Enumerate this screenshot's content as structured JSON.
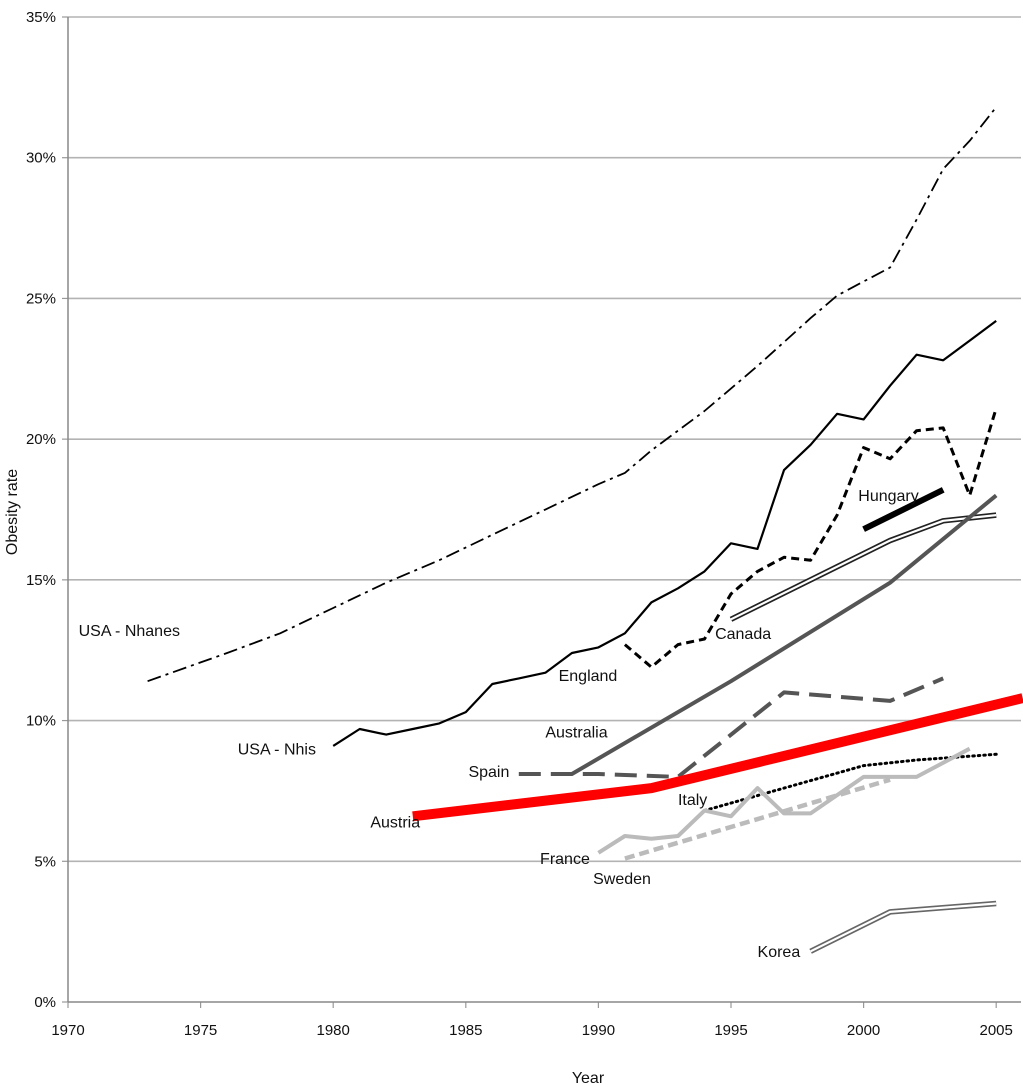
{
  "chart_data": {
    "type": "line",
    "title": "",
    "xlabel": "Year",
    "ylabel": "Obesity rate",
    "xlim": [
      1970,
      2006
    ],
    "ylim": [
      0,
      35
    ],
    "x_ticks": [
      "1970",
      "1975",
      "1980",
      "1985",
      "1990",
      "1995",
      "2000",
      "2005"
    ],
    "y_ticks": [
      "0%",
      "5%",
      "10%",
      "15%",
      "20%",
      "25%",
      "30%",
      "35%"
    ],
    "grid": "horizontal",
    "series": [
      {
        "name": "USA - Nhanes",
        "color": "#000000",
        "style": "dash-dot",
        "x": [
          1973,
          1976,
          1978,
          1980,
          1982,
          1984,
          1986,
          1988,
          1990,
          1991,
          1992,
          1994,
          1996,
          1998,
          1999,
          2000,
          2001,
          2002,
          2003,
          2004,
          2005
        ],
        "y": [
          11.4,
          12.4,
          13.1,
          14.0,
          14.9,
          15.7,
          16.6,
          17.5,
          18.4,
          18.8,
          19.6,
          21.0,
          22.6,
          24.3,
          25.1,
          25.6,
          26.1,
          27.8,
          29.6,
          30.6,
          31.8
        ]
      },
      {
        "name": "USA - Nhis",
        "color": "#000000",
        "style": "solid",
        "x": [
          1980,
          1981,
          1982,
          1983,
          1984,
          1985,
          1986,
          1987,
          1988,
          1989,
          1990,
          1991,
          1992,
          1993,
          1994,
          1995,
          1996,
          1997,
          1998,
          1999,
          2000,
          2001,
          2002,
          2003,
          2004,
          2005
        ],
        "y": [
          9.1,
          9.7,
          9.5,
          9.7,
          9.9,
          10.3,
          11.3,
          11.5,
          11.7,
          12.4,
          12.6,
          13.1,
          14.2,
          14.7,
          15.3,
          16.3,
          16.1,
          18.9,
          19.8,
          20.9,
          20.7,
          21.9,
          23.0,
          22.8,
          23.5,
          24.2
        ]
      },
      {
        "name": "England",
        "color": "#000000",
        "style": "dotted-dash",
        "x": [
          1991,
          1992,
          1993,
          1994,
          1995,
          1996,
          1997,
          1998,
          1999,
          2000,
          2001,
          2002,
          2003,
          2004,
          2005
        ],
        "y": [
          12.7,
          11.9,
          12.7,
          12.9,
          14.5,
          15.3,
          15.8,
          15.7,
          17.3,
          19.7,
          19.3,
          20.3,
          20.4,
          18.0,
          21.1
        ]
      },
      {
        "name": "Canada",
        "color": "#222222",
        "style": "double",
        "x": [
          1995,
          2001,
          2003,
          2005
        ],
        "y": [
          13.6,
          16.4,
          17.1,
          17.3
        ]
      },
      {
        "name": "Hungary",
        "color": "#000000",
        "style": "thick",
        "x": [
          2000,
          2003
        ],
        "y": [
          16.8,
          18.2
        ]
      },
      {
        "name": "Australia",
        "color": "#555555",
        "style": "solid-medium",
        "x": [
          1989,
          1995,
          2001,
          2005
        ],
        "y": [
          8.1,
          11.4,
          14.9,
          18.0
        ]
      },
      {
        "name": "Spain",
        "color": "#555555",
        "style": "long-dash",
        "x": [
          1987,
          1990,
          1993,
          1997,
          2001,
          2003
        ],
        "y": [
          8.1,
          8.1,
          8.0,
          11.0,
          10.7,
          11.5
        ]
      },
      {
        "name": "Austria",
        "color": "#ff0000",
        "style": "thick",
        "x": [
          1983,
          1992,
          2006
        ],
        "y": [
          6.6,
          7.6,
          10.8
        ]
      },
      {
        "name": "Italy",
        "color": "#000000",
        "style": "dotted",
        "x": [
          1994,
          1997,
          2000,
          2002,
          2005
        ],
        "y": [
          6.8,
          7.6,
          8.4,
          8.6,
          8.8
        ]
      },
      {
        "name": "France",
        "color": "#bbbbbb",
        "style": "solid-medium",
        "x": [
          1990,
          1991,
          1992,
          1993,
          1994,
          1995,
          1996,
          1997,
          1998,
          2000,
          2002,
          2004
        ],
        "y": [
          5.3,
          5.9,
          5.8,
          5.9,
          6.8,
          6.6,
          7.6,
          6.7,
          6.7,
          8.0,
          8.0,
          9.0
        ]
      },
      {
        "name": "Sweden",
        "color": "#bbbbbb",
        "style": "short-dash",
        "x": [
          1991,
          2001
        ],
        "y": [
          5.1,
          7.9
        ]
      },
      {
        "name": "Korea",
        "color": "#666666",
        "style": "double",
        "x": [
          1998,
          2001,
          2005
        ],
        "y": [
          1.8,
          3.2,
          3.5
        ]
      }
    ],
    "labels": [
      {
        "text": "USA - Nhanes",
        "x": 1970.4,
        "y": 13.0
      },
      {
        "text": "USA - Nhis",
        "x": 1976.4,
        "y": 8.8
      },
      {
        "text": "England",
        "x": 1988.5,
        "y": 11.4
      },
      {
        "text": "Canada",
        "x": 1994.4,
        "y": 12.9
      },
      {
        "text": "Hungary",
        "x": 1999.8,
        "y": 17.8
      },
      {
        "text": "Australia",
        "x": 1988.0,
        "y": 9.4
      },
      {
        "text": "Spain",
        "x": 1985.1,
        "y": 8.0
      },
      {
        "text": "Austria",
        "x": 1981.4,
        "y": 6.2
      },
      {
        "text": "Italy",
        "x": 1993.0,
        "y": 7.0
      },
      {
        "text": "France",
        "x": 1987.8,
        "y": 4.9
      },
      {
        "text": "Sweden",
        "x": 1989.8,
        "y": 4.2
      },
      {
        "text": "Korea",
        "x": 1996.0,
        "y": 1.6
      }
    ]
  }
}
